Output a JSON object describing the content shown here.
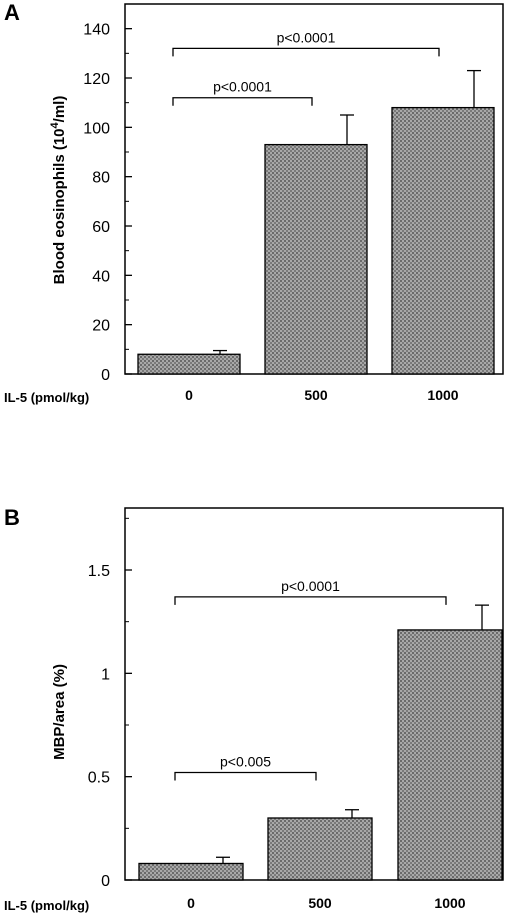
{
  "chart_data": [
    {
      "type": "bar",
      "panel": "A",
      "categories": [
        "0",
        "500",
        "1000"
      ],
      "values": [
        8,
        93,
        108
      ],
      "errors": [
        1.5,
        12,
        15
      ],
      "ylabel": "Blood eosinophils (10",
      "ylabel_sup": "4",
      "ylabel_end": "/ml)",
      "xlabel": "IL-5  (pmol/kg)",
      "ylim": [
        0,
        150
      ],
      "yticks": [
        "0",
        "20",
        "40",
        "60",
        "80",
        "100",
        "120",
        "140"
      ],
      "ytick_values": [
        0,
        20,
        40,
        60,
        80,
        100,
        120,
        140
      ],
      "annotations": [
        {
          "text": "p<0.0001",
          "from": 0,
          "to": 1,
          "level": 112
        },
        {
          "text": "p<0.0001",
          "from": 0,
          "to": 2,
          "level": 132
        }
      ],
      "grid": false,
      "bar_pattern": "stippled gray"
    },
    {
      "type": "bar",
      "panel": "B",
      "categories": [
        "0",
        "500",
        "1000"
      ],
      "values": [
        0.08,
        0.3,
        1.21
      ],
      "errors": [
        0.03,
        0.04,
        0.12
      ],
      "ylabel": "MBP/area (%)",
      "xlabel": "IL-5  (pmol/kg)",
      "ylim": [
        0,
        1.8
      ],
      "yticks": [
        "0",
        "0.5",
        "1",
        "1.5"
      ],
      "ytick_values": [
        0,
        0.5,
        1,
        1.5
      ],
      "annotations": [
        {
          "text": "p<0.005",
          "from": 0,
          "to": 1,
          "level": 0.52
        },
        {
          "text": "p<0.0001",
          "from": 0,
          "to": 2,
          "level": 1.37
        }
      ],
      "grid": false,
      "bar_pattern": "stippled gray"
    }
  ],
  "colors": {
    "bar_fill": "#9a9a9a",
    "axis": "#000000",
    "background": "#ffffff"
  }
}
